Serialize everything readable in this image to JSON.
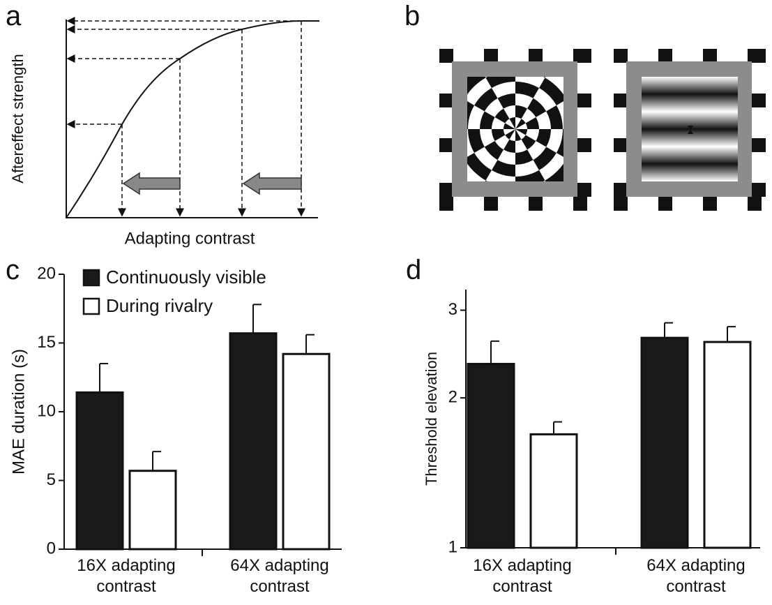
{
  "figure_a": {
    "label": "a",
    "ylabel": "Aftereffect strength",
    "xlabel": "Adapting contrast"
  },
  "figure_b": {
    "label": "b"
  },
  "chart_data": [
    {
      "type": "bar",
      "label": "c",
      "categories": [
        "16X adapting contrast",
        "64X adapting contrast"
      ],
      "ylabel": "MAE duration (s)",
      "ylim": [
        0,
        20
      ],
      "yticks": [
        0,
        5,
        10,
        15,
        20
      ],
      "legend": "upper left",
      "series": [
        {
          "name": "Continuously visible",
          "color": "#1a1a1a",
          "values": [
            11.4,
            15.7
          ],
          "errors": [
            2.1,
            2.1
          ]
        },
        {
          "name": "During rivalry",
          "color": "#ffffff",
          "values": [
            5.7,
            14.2
          ],
          "errors": [
            1.4,
            1.4
          ]
        }
      ]
    },
    {
      "type": "bar",
      "label": "d",
      "categories": [
        "16X adapting contrast",
        "64X adapting contrast"
      ],
      "ylabel": "Threshold elevation",
      "log_y": true,
      "ylim": [
        1,
        3.3
      ],
      "yticks": [
        1,
        2,
        3
      ],
      "series": [
        {
          "color": "#1a1a1a",
          "values": [
            2.34,
            2.64
          ],
          "errors": [
            0.26,
            0.19
          ]
        },
        {
          "color": "#ffffff",
          "values": [
            1.69,
            2.59
          ],
          "errors": [
            0.1,
            0.19
          ]
        }
      ]
    }
  ]
}
